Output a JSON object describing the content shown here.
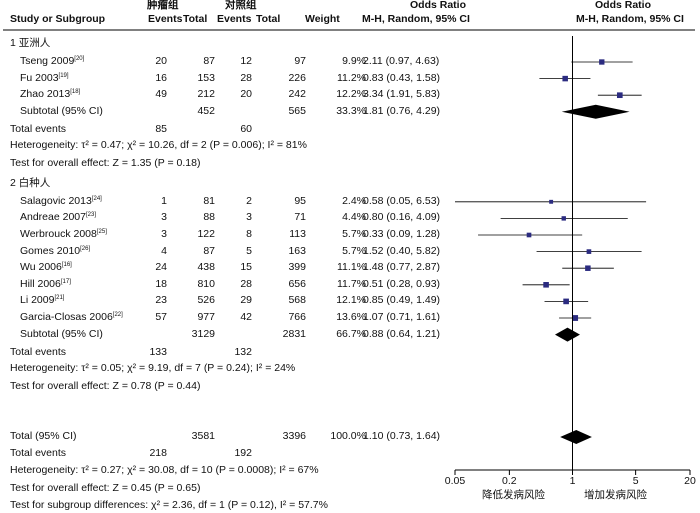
{
  "chart_data": {
    "type": "forest",
    "header": {
      "group1": "肿瘤组",
      "group2": "对照组",
      "col_study": "Study or Subgroup",
      "col_events1": "Events",
      "col_total1": "Total",
      "col_events2": "Events",
      "col_total2": "Total",
      "col_weight": "Weight",
      "col_or": "Odds Ratio",
      "col_or_method": "M-H, Random, 95% CI",
      "plot_title": "Odds Ratio",
      "plot_method": "M-H, Random, 95% CI"
    },
    "subgroups": [
      {
        "title": "1 亚洲人",
        "studies": [
          {
            "name": "Tseng 2009",
            "ref": "[20]",
            "e1": "20",
            "t1": "87",
            "e2": "12",
            "t2": "97",
            "weight": "9.9%",
            "or_text": "2.11 (0.97, 4.63)",
            "or": 2.11,
            "lo": 0.97,
            "hi": 4.63
          },
          {
            "name": "Fu 2003",
            "ref": "[19]",
            "e1": "16",
            "t1": "153",
            "e2": "28",
            "t2": "226",
            "weight": "11.2%",
            "or_text": "0.83 (0.43, 1.58)",
            "or": 0.83,
            "lo": 0.43,
            "hi": 1.58
          },
          {
            "name": "Zhao 2013",
            "ref": "[18]",
            "e1": "49",
            "t1": "212",
            "e2": "20",
            "t2": "242",
            "weight": "12.2%",
            "or_text": "3.34 (1.91, 5.83)",
            "or": 3.34,
            "lo": 1.91,
            "hi": 5.83
          }
        ],
        "subtotal": {
          "label": "Subtotal (95% CI)",
          "t1": "452",
          "t2": "565",
          "weight": "33.3%",
          "or_text": "1.81 (0.76, 4.29)",
          "or": 1.81,
          "lo": 0.76,
          "hi": 4.29
        },
        "total_events": {
          "label": "Total events",
          "e1": "85",
          "e2": "60"
        },
        "heterogeneity": "Heterogeneity: τ² = 0.47; χ² = 10.26, df = 2 (P = 0.006); I² = 81%",
        "overall": "Test for overall effect: Z = 1.35 (P = 0.18)"
      },
      {
        "title": "2 白种人",
        "studies": [
          {
            "name": "Salagovic 2013",
            "ref": "[24]",
            "e1": "1",
            "t1": "81",
            "e2": "2",
            "t2": "95",
            "weight": "2.4%",
            "or_text": "0.58 (0.05, 6.53)",
            "or": 0.58,
            "lo": 0.05,
            "hi": 6.53
          },
          {
            "name": "Andreae 2007",
            "ref": "[23]",
            "e1": "3",
            "t1": "88",
            "e2": "3",
            "t2": "71",
            "weight": "4.4%",
            "or_text": "0.80 (0.16, 4.09)",
            "or": 0.8,
            "lo": 0.16,
            "hi": 4.09
          },
          {
            "name": "Werbrouck 2008",
            "ref": "[25]",
            "e1": "3",
            "t1": "122",
            "e2": "8",
            "t2": "113",
            "weight": "5.7%",
            "or_text": "0.33 (0.09, 1.28)",
            "or": 0.33,
            "lo": 0.09,
            "hi": 1.28
          },
          {
            "name": "Gomes 2010",
            "ref": "[26]",
            "e1": "4",
            "t1": "87",
            "e2": "5",
            "t2": "163",
            "weight": "5.7%",
            "or_text": "1.52 (0.40, 5.82)",
            "or": 1.52,
            "lo": 0.4,
            "hi": 5.82
          },
          {
            "name": "Wu 2006",
            "ref": "[16]",
            "e1": "24",
            "t1": "438",
            "e2": "15",
            "t2": "399",
            "weight": "11.1%",
            "or_text": "1.48 (0.77, 2.87)",
            "or": 1.48,
            "lo": 0.77,
            "hi": 2.87
          },
          {
            "name": "Hill 2006",
            "ref": "[17]",
            "e1": "18",
            "t1": "810",
            "e2": "28",
            "t2": "656",
            "weight": "11.7%",
            "or_text": "0.51 (0.28, 0.93)",
            "or": 0.51,
            "lo": 0.28,
            "hi": 0.93
          },
          {
            "name": "Li 2009",
            "ref": "[21]",
            "e1": "23",
            "t1": "526",
            "e2": "29",
            "t2": "568",
            "weight": "12.1%",
            "or_text": "0.85 (0.49, 1.49)",
            "or": 0.85,
            "lo": 0.49,
            "hi": 1.49
          },
          {
            "name": "Garcia-Closas 2006",
            "ref": "[22]",
            "e1": "57",
            "t1": "977",
            "e2": "42",
            "t2": "766",
            "weight": "13.6%",
            "or_text": "1.07 (0.71, 1.61)",
            "or": 1.07,
            "lo": 0.71,
            "hi": 1.61
          }
        ],
        "subtotal": {
          "label": "Subtotal (95% CI)",
          "t1": "3129",
          "t2": "2831",
          "weight": "66.7%",
          "or_text": "0.88 (0.64, 1.21)",
          "or": 0.88,
          "lo": 0.64,
          "hi": 1.21
        },
        "total_events": {
          "label": "Total events",
          "e1": "133",
          "e2": "132"
        },
        "heterogeneity": "Heterogeneity: τ² = 0.05; χ² = 9.19, df = 7 (P = 0.24); I² = 24%",
        "overall": "Test for overall effect: Z = 0.78 (P = 0.44)"
      }
    ],
    "total": {
      "label": "Total (95% CI)",
      "t1": "3581",
      "t2": "3396",
      "weight": "100.0%",
      "or_text": "1.10 (0.73, 1.64)",
      "or": 1.1,
      "lo": 0.73,
      "hi": 1.64
    },
    "total_events": {
      "label": "Total events",
      "e1": "218",
      "e2": "192"
    },
    "heterogeneity": "Heterogeneity: τ² = 0.27; χ² = 30.08, df = 10 (P = 0.0008); I² = 67%",
    "overall": "Test for overall effect: Z = 0.45 (P = 0.65)",
    "subgroup_diff": "Test for subgroup differences: χ² = 2.36, df = 1 (P = 0.12), I² = 57.7%",
    "x_axis": {
      "scale": "log",
      "range": [
        0.05,
        20
      ],
      "ticks": [
        0.05,
        0.2,
        1,
        5,
        20
      ],
      "tick_labels": [
        "0.05",
        "0.2",
        "1",
        "5",
        "20"
      ],
      "left_label": "降低发病风险",
      "right_label": "增加发病风险"
    },
    "colors": {
      "marker": "#2b2b80",
      "diamond": "#000000",
      "line": "#000000"
    }
  }
}
